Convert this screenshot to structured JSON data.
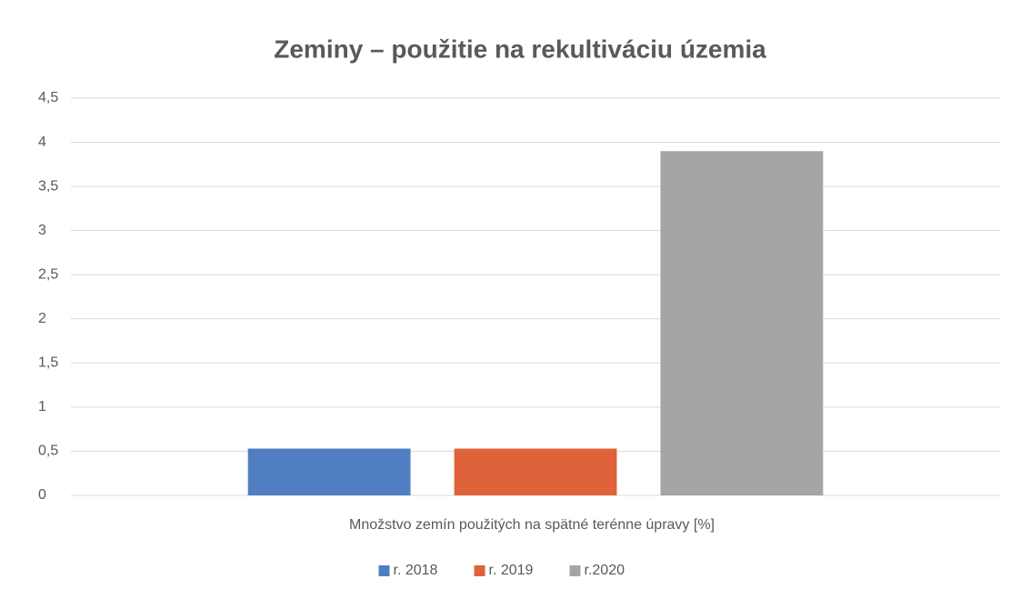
{
  "chart_data": {
    "type": "bar",
    "title": "Zeminy – použitie na rekultiváciu územia",
    "categories": [
      "Množstvo zemín použitých na spätné terénne úpravy [%]"
    ],
    "series": [
      {
        "name": "r. 2018",
        "color": "#4f7fc0",
        "values": [
          0.53
        ]
      },
      {
        "name": "r. 2019",
        "color": "#e0623a",
        "values": [
          0.53
        ]
      },
      {
        "name": "r.2020",
        "color": "#a5a5a5",
        "values": [
          3.9
        ]
      }
    ],
    "ylim": [
      0,
      4.5
    ],
    "yticks": [
      0,
      {
        "value": 0.5,
        "label": "0,5"
      },
      1,
      {
        "value": 1.5,
        "label": "1,5"
      },
      2,
      {
        "value": 2.5,
        "label": "2,5"
      },
      3,
      {
        "value": 3.5,
        "label": "3,5"
      },
      4,
      {
        "value": 4.5,
        "label": "4,5"
      }
    ],
    "grid": true,
    "legend": "bottom"
  }
}
